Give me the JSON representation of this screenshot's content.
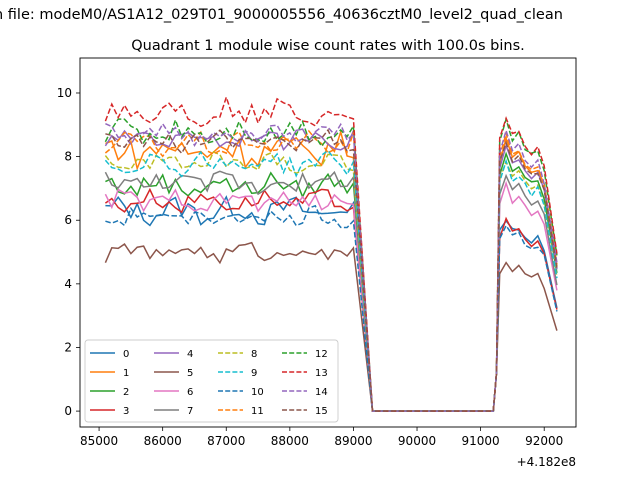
{
  "figure": {
    "suptitle": "n file: modeM0/AS1A12_029T01_9000005556_40636cztM0_level2_quad_clean",
    "title": "Quadrant 1 module wise count rates with 100.0s bins.",
    "offset_text": "+4.182e8"
  },
  "chart_data": {
    "type": "line",
    "title": "Quadrant 1 module wise count rates with 100.0s bins.",
    "xlabel": "",
    "ylabel": "",
    "x_offset": 418200000,
    "xlim": [
      84700,
      92500
    ],
    "ylim": [
      -0.5,
      11.1
    ],
    "xticks": [
      85000,
      86000,
      87000,
      88000,
      89000,
      90000,
      91000,
      92000
    ],
    "xtick_labels": [
      "85000",
      "86000",
      "87000",
      "88000",
      "89000",
      "90000",
      "91000",
      "92000"
    ],
    "yticks": [
      0,
      2,
      4,
      6,
      8,
      10
    ],
    "ytick_labels": [
      "0",
      "2",
      "4",
      "6",
      "8",
      "10"
    ],
    "grid": false,
    "legend_position": "lower-left",
    "legend_columns": 4,
    "segments": [
      {
        "start": 85100,
        "step": 100,
        "count": 40
      },
      {
        "start": 89300,
        "step": 100,
        "count": 20
      },
      {
        "start": 91300,
        "step": 100,
        "count": 9
      }
    ],
    "series": [
      {
        "name": "0",
        "color": "#1f77b4",
        "dash": "solid",
        "base": 6.3,
        "amp": 0.35,
        "burst": 5.9
      },
      {
        "name": "1",
        "color": "#ff7f0e",
        "dash": "solid",
        "base": 8.2,
        "amp": 0.45,
        "burst": 8.3
      },
      {
        "name": "2",
        "color": "#2ca02c",
        "dash": "solid",
        "base": 7.1,
        "amp": 0.3,
        "burst": 7.9
      },
      {
        "name": "3",
        "color": "#d62728",
        "dash": "solid",
        "base": 6.6,
        "amp": 0.25,
        "burst": 5.8
      },
      {
        "name": "4",
        "color": "#9467bd",
        "dash": "solid",
        "base": 8.6,
        "amp": 0.25,
        "burst": 8.1
      },
      {
        "name": "5",
        "color": "#8c564b",
        "dash": "solid",
        "base": 5.0,
        "amp": 0.22,
        "burst": 4.6
      },
      {
        "name": "6",
        "color": "#e377c2",
        "dash": "solid",
        "base": 6.6,
        "amp": 0.3,
        "burst": 6.9
      },
      {
        "name": "7",
        "color": "#7f7f7f",
        "dash": "solid",
        "base": 7.2,
        "amp": 0.35,
        "burst": 7.2
      },
      {
        "name": "8",
        "color": "#bcbd22",
        "dash": "dashed",
        "base": 7.8,
        "amp": 0.25,
        "burst": 7.7
      },
      {
        "name": "9",
        "color": "#17becf",
        "dash": "dashed",
        "base": 7.8,
        "amp": 0.3,
        "burst": 7.6
      },
      {
        "name": "10",
        "color": "#1f77b4",
        "dash": "dashed",
        "base": 6.1,
        "amp": 0.25,
        "burst": 5.7
      },
      {
        "name": "11",
        "color": "#ff7f0e",
        "dash": "dashed",
        "base": 8.4,
        "amp": 0.3,
        "burst": 8.4
      },
      {
        "name": "12",
        "color": "#2ca02c",
        "dash": "dashed",
        "base": 8.8,
        "amp": 0.35,
        "burst": 8.9
      },
      {
        "name": "13",
        "color": "#d62728",
        "dash": "dashed",
        "base": 9.4,
        "amp": 0.35,
        "burst": 9.0
      },
      {
        "name": "14",
        "color": "#9467bd",
        "dash": "dashed",
        "base": 8.7,
        "amp": 0.25,
        "burst": 8.5
      },
      {
        "name": "15",
        "color": "#8c564b",
        "dash": "dashed",
        "base": 8.5,
        "amp": 0.25,
        "burst": 8.2
      }
    ]
  }
}
